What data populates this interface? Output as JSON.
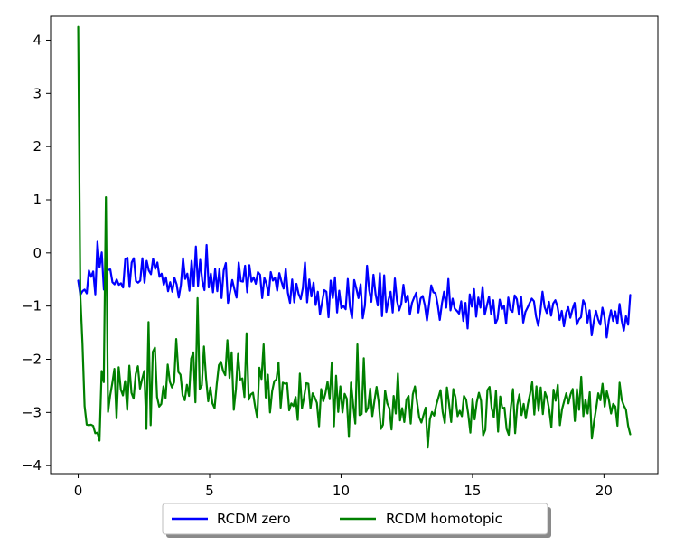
{
  "chart_data": {
    "type": "line",
    "title": "",
    "xlabel": "",
    "ylabel": "",
    "xlim": [
      -1.05,
      22.05
    ],
    "ylim": [
      -4.15,
      4.45
    ],
    "x_ticks": [
      0,
      5,
      10,
      15,
      20
    ],
    "y_ticks": [
      -4,
      -3,
      -2,
      -1,
      0,
      1,
      2,
      3,
      4
    ],
    "grid": false,
    "legend": {
      "placement": "bottom-center-outside",
      "columns": 2
    },
    "x_end": 21,
    "series": [
      {
        "name": "RCDM zero",
        "color": "#0000ff",
        "values": [
          -0.52,
          -0.79,
          -0.72,
          -0.69,
          -0.76,
          -0.33,
          -0.45,
          -0.35,
          -0.78,
          0.21,
          -0.27,
          0.01,
          -0.69,
          -0.35,
          -0.32,
          -0.31,
          -0.55,
          -0.59,
          -0.5,
          -0.6,
          -0.57,
          -0.65,
          -0.12,
          -0.09,
          -0.64,
          -0.18,
          -0.1,
          -0.53,
          -0.56,
          -0.52,
          -0.1,
          -0.56,
          -0.15,
          -0.33,
          -0.4,
          -0.11,
          -0.3,
          -0.18,
          -0.45,
          -0.39,
          -0.6,
          -0.46,
          -0.72,
          -0.55,
          -0.73,
          -0.47,
          -0.59,
          -0.84,
          -0.6,
          -0.1,
          -0.49,
          -0.39,
          -0.71,
          -0.15,
          -0.63,
          0.12,
          -0.62,
          -0.13,
          -0.53,
          -0.7,
          0.15,
          -0.65,
          -0.39,
          -0.74,
          -0.3,
          -0.72,
          -0.3,
          -0.85,
          -0.33,
          -0.19,
          -0.94,
          -0.73,
          -0.51,
          -0.68,
          -0.84,
          -0.18,
          -0.53,
          -0.54,
          -0.24,
          -0.74,
          -0.23,
          -0.54,
          -0.46,
          -0.58,
          -0.36,
          -0.41,
          -0.85,
          -0.47,
          -0.58,
          -0.8,
          -0.36,
          -0.52,
          -0.47,
          -0.71,
          -0.38,
          -0.54,
          -0.67,
          -0.3,
          -0.75,
          -0.94,
          -0.5,
          -0.93,
          -0.58,
          -0.77,
          -0.87,
          -0.66,
          -0.18,
          -0.93,
          -0.5,
          -0.82,
          -0.56,
          -0.98,
          -0.73,
          -1.16,
          -0.93,
          -0.7,
          -0.73,
          -1.21,
          -0.52,
          -0.85,
          -0.46,
          -1.12,
          -0.71,
          -1.04,
          -1.0,
          -1.06,
          -0.49,
          -1.01,
          -1.23,
          -0.51,
          -0.67,
          -0.85,
          -0.59,
          -1.23,
          -0.99,
          -0.24,
          -0.7,
          -0.92,
          -0.41,
          -0.78,
          -0.99,
          -0.38,
          -1.19,
          -0.42,
          -1.11,
          -0.89,
          -0.73,
          -1.12,
          -0.48,
          -0.9,
          -1.08,
          -0.96,
          -0.6,
          -0.92,
          -0.8,
          -1.16,
          -0.94,
          -0.84,
          -0.75,
          -1.12,
          -0.86,
          -0.81,
          -0.98,
          -1.27,
          -0.96,
          -0.61,
          -0.74,
          -0.76,
          -0.97,
          -1.26,
          -0.95,
          -0.73,
          -1.03,
          -0.49,
          -1.08,
          -0.86,
          -1.05,
          -1.09,
          -1.14,
          -0.91,
          -1.28,
          -0.94,
          -1.42,
          -0.78,
          -1.01,
          -0.68,
          -1.2,
          -0.84,
          -1.03,
          -0.64,
          -1.16,
          -0.99,
          -0.82,
          -1.15,
          -0.89,
          -1.33,
          -1.24,
          -0.88,
          -1.06,
          -0.99,
          -1.33,
          -0.84,
          -1.07,
          -1.11,
          -0.8,
          -0.87,
          -1.16,
          -0.82,
          -1.31,
          -1.11,
          -1.03,
          -0.94,
          -0.86,
          -0.91,
          -1.2,
          -1.37,
          -1.11,
          -0.73,
          -1.02,
          -1.13,
          -0.92,
          -1.18,
          -0.95,
          -0.89,
          -1.01,
          -1.26,
          -1.09,
          -1.38,
          -1.13,
          -1.02,
          -1.22,
          -1.06,
          -0.94,
          -1.35,
          -1.25,
          -1.21,
          -0.89,
          -0.98,
          -1.31,
          -1.08,
          -1.55,
          -1.28,
          -1.09,
          -1.25,
          -1.35,
          -1.03,
          -1.21,
          -1.59,
          -1.27,
          -1.08,
          -1.28,
          -1.1,
          -1.33,
          -0.96,
          -1.27,
          -1.46,
          -1.19,
          -1.35,
          -0.79
        ]
      },
      {
        "name": "RCDM homotopic",
        "color": "#008000",
        "values": [
          4.25,
          -0.8,
          -1.7,
          -2.88,
          -3.23,
          -3.24,
          -3.23,
          -3.25,
          -3.39,
          -3.38,
          -3.53,
          -2.22,
          -2.43,
          1.05,
          -2.99,
          -2.68,
          -2.45,
          -2.18,
          -3.11,
          -2.15,
          -2.57,
          -2.68,
          -2.41,
          -2.95,
          -2.12,
          -2.63,
          -2.74,
          -2.28,
          -2.13,
          -2.55,
          -2.37,
          -2.22,
          -3.31,
          -1.3,
          -3.24,
          -1.86,
          -1.78,
          -2.71,
          -2.89,
          -2.84,
          -2.51,
          -2.73,
          -2.1,
          -2.42,
          -2.53,
          -2.43,
          -1.62,
          -2.24,
          -2.29,
          -2.68,
          -2.77,
          -2.48,
          -2.69,
          -1.99,
          -1.87,
          -2.81,
          -0.85,
          -2.56,
          -2.49,
          -1.76,
          -2.36,
          -2.79,
          -2.53,
          -2.83,
          -2.92,
          -2.47,
          -2.11,
          -2.05,
          -2.22,
          -2.3,
          -1.64,
          -2.35,
          -1.87,
          -2.95,
          -2.56,
          -1.9,
          -2.38,
          -2.36,
          -2.71,
          -1.51,
          -2.76,
          -2.66,
          -2.63,
          -2.89,
          -3.1,
          -2.16,
          -2.37,
          -1.72,
          -2.72,
          -2.29,
          -3.0,
          -2.6,
          -2.41,
          -2.38,
          -2.06,
          -2.91,
          -2.44,
          -2.46,
          -2.45,
          -2.96,
          -2.83,
          -2.88,
          -2.71,
          -3.14,
          -2.27,
          -2.92,
          -2.71,
          -2.45,
          -2.46,
          -2.92,
          -2.64,
          -2.72,
          -2.82,
          -3.26,
          -2.56,
          -2.79,
          -2.64,
          -2.42,
          -2.75,
          -2.06,
          -3.26,
          -2.31,
          -2.99,
          -2.51,
          -3.0,
          -2.65,
          -2.74,
          -3.46,
          -2.44,
          -2.85,
          -3.21,
          -1.72,
          -3.05,
          -3.03,
          -1.98,
          -2.99,
          -2.91,
          -2.55,
          -3.07,
          -2.78,
          -2.52,
          -2.81,
          -3.31,
          -3.23,
          -2.59,
          -2.83,
          -2.92,
          -3.32,
          -2.69,
          -3.02,
          -2.27,
          -3.15,
          -2.92,
          -3.18,
          -2.76,
          -2.69,
          -3.21,
          -2.66,
          -2.51,
          -2.81,
          -3.09,
          -3.19,
          -3.05,
          -2.91,
          -3.66,
          -3.13,
          -2.99,
          -3.06,
          -2.86,
          -2.72,
          -2.58,
          -2.99,
          -3.2,
          -2.53,
          -2.84,
          -3.18,
          -2.56,
          -2.71,
          -3.07,
          -2.97,
          -3.07,
          -2.69,
          -2.76,
          -3.03,
          -3.38,
          -2.74,
          -3.13,
          -2.81,
          -2.63,
          -2.78,
          -3.43,
          -3.33,
          -2.58,
          -2.52,
          -2.92,
          -3.09,
          -2.59,
          -3.36,
          -2.7,
          -2.92,
          -2.91,
          -3.31,
          -3.42,
          -2.9,
          -2.56,
          -3.39,
          -2.86,
          -2.66,
          -3.05,
          -2.84,
          -3.11,
          -2.84,
          -2.65,
          -2.43,
          -3.04,
          -2.51,
          -2.97,
          -2.53,
          -3.03,
          -2.62,
          -2.73,
          -2.95,
          -3.28,
          -2.57,
          -2.78,
          -2.48,
          -3.24,
          -2.94,
          -2.79,
          -2.64,
          -2.83,
          -2.66,
          -2.56,
          -3.16,
          -2.56,
          -2.95,
          -2.33,
          -3.07,
          -2.76,
          -3.02,
          -2.62,
          -3.49,
          -3.18,
          -2.93,
          -2.64,
          -2.77,
          -2.46,
          -2.89,
          -2.6,
          -2.77,
          -3.02,
          -2.84,
          -2.89,
          -3.25,
          -2.44,
          -2.76,
          -2.87,
          -2.95,
          -3.25,
          -3.41
        ]
      }
    ]
  }
}
